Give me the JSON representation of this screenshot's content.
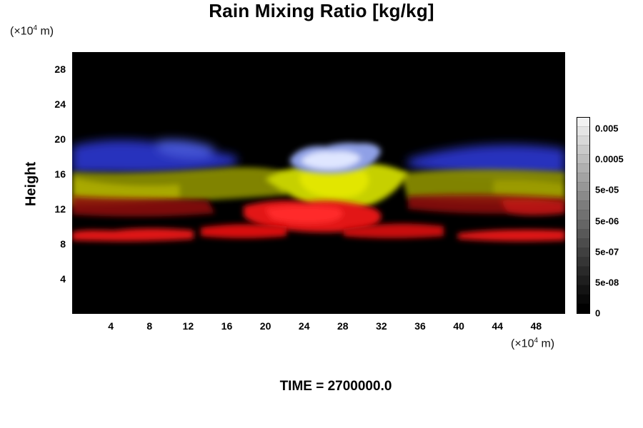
{
  "chart_data": {
    "type": "heatmap",
    "title": "Rain Mixing Ratio [kg/kg]",
    "ylabel": "Height",
    "y_unit_prefix": "(×10",
    "y_unit_exp": "4",
    "y_unit_suffix": " m)",
    "x_unit_prefix": "(×10",
    "x_unit_exp": "4",
    "x_unit_suffix": " m)",
    "xlim": [
      0,
      51
    ],
    "ylim": [
      0,
      30
    ],
    "xticks": [
      "4",
      "8",
      "12",
      "16",
      "20",
      "24",
      "28",
      "32",
      "36",
      "40",
      "44",
      "48"
    ],
    "yticks": [
      "4",
      "8",
      "12",
      "16",
      "20",
      "24",
      "28"
    ],
    "colorbar": {
      "labels": [
        "0.005",
        "0.0005",
        "5e-05",
        "5e-06",
        "5e-07",
        "5e-08",
        "0"
      ],
      "steps": 21,
      "color_low": "#000000",
      "color_high": "#f2f2f2"
    },
    "layers": [
      {
        "color": "#ff1a1a",
        "y_center": 9.0,
        "x_start": 0,
        "x_end": 51,
        "description": "red band"
      },
      {
        "color": "#e01010",
        "y_center": 11.0,
        "x_start": 17,
        "x_end": 34,
        "description": "red band"
      },
      {
        "color": "#c4c400",
        "y_center": 14.0,
        "x_start": 0,
        "x_end": 51,
        "description": "yellow band"
      },
      {
        "color": "#1a2ed4",
        "y_center": 17.5,
        "x_start": 0,
        "x_end": 51,
        "description": "blue band"
      },
      {
        "color": "#c8d4ff",
        "y_center": 17.0,
        "x_start": 22,
        "x_end": 31,
        "description": "white patch"
      }
    ]
  },
  "time_label": "TIME = 2700000.0"
}
